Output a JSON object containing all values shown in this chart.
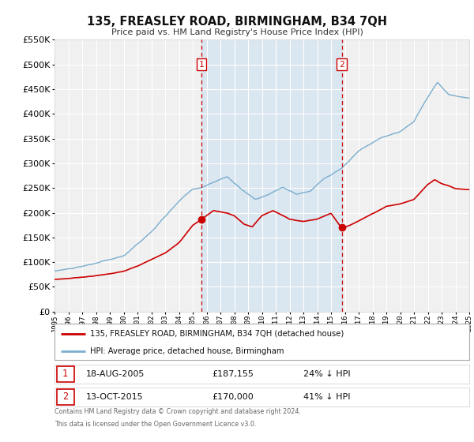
{
  "title": "135, FREASLEY ROAD, BIRMINGHAM, B34 7QH",
  "subtitle": "Price paid vs. HM Land Registry's House Price Index (HPI)",
  "legend_label_red": "135, FREASLEY ROAD, BIRMINGHAM, B34 7QH (detached house)",
  "legend_label_blue": "HPI: Average price, detached house, Birmingham",
  "footer1": "Contains HM Land Registry data © Crown copyright and database right 2024.",
  "footer2": "This data is licensed under the Open Government Licence v3.0.",
  "annotation1_label": "1",
  "annotation1_date": "18-AUG-2005",
  "annotation1_price": "£187,155",
  "annotation1_hpi": "24% ↓ HPI",
  "annotation2_label": "2",
  "annotation2_date": "13-OCT-2015",
  "annotation2_price": "£170,000",
  "annotation2_hpi": "41% ↓ HPI",
  "sale1_x": 2005.63,
  "sale1_y": 187155,
  "sale2_x": 2015.78,
  "sale2_y": 170000,
  "vline1_x": 2005.63,
  "vline2_x": 2015.78,
  "ylim": [
    0,
    550000
  ],
  "xlim_start": 1995,
  "xlim_end": 2025,
  "red_color": "#cc0000",
  "blue_color": "#7aadcf",
  "vline_color": "#cc0000",
  "bg_color": "#ffffff",
  "plot_bg_color": "#f0f0f0",
  "grid_color": "#ffffff",
  "highlight_bg": "#cce0f0"
}
